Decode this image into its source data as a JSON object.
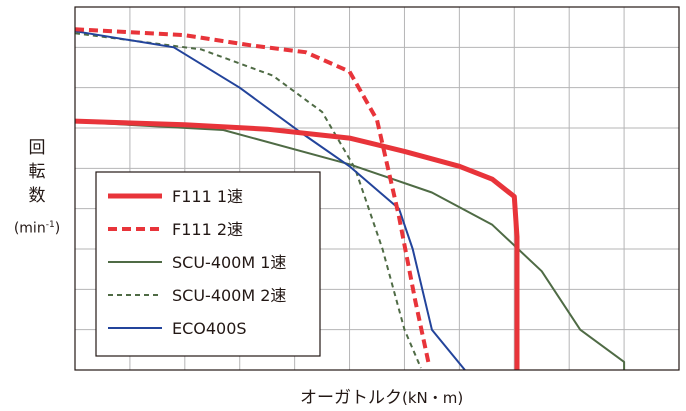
{
  "chart_data": {
    "type": "line",
    "title": "",
    "xlabel": "オーガトルク",
    "xlabel_unit": "(kN・m)",
    "ylabel_chars": [
      "回",
      "転",
      "数"
    ],
    "ylabel_unit_base": "(min",
    "ylabel_unit_sup": "-1",
    "ylabel_unit_close": ")",
    "xlim": [
      0,
      11
    ],
    "ylim": [
      0,
      9
    ],
    "x_gridlines": 10,
    "y_gridlines": 8,
    "grid": true,
    "legend_position": "bottom-left",
    "series": [
      {
        "name": "F111 1速",
        "color": "#e8343a",
        "style": "solid",
        "width": 5,
        "points": [
          [
            0,
            6.17
          ],
          [
            2,
            6.08
          ],
          [
            3.5,
            5.97
          ],
          [
            5,
            5.75
          ],
          [
            6,
            5.42
          ],
          [
            7,
            5.05
          ],
          [
            7.6,
            4.73
          ],
          [
            8,
            4.3
          ],
          [
            8.05,
            3.3
          ],
          [
            8.05,
            0
          ]
        ]
      },
      {
        "name": "F111 2速",
        "color": "#e8343a",
        "style": "dashed",
        "width": 4,
        "points": [
          [
            0,
            8.45
          ],
          [
            2,
            8.3
          ],
          [
            3.2,
            8.05
          ],
          [
            4.2,
            7.88
          ],
          [
            5,
            7.4
          ],
          [
            5.5,
            6.2
          ],
          [
            5.9,
            3.8
          ],
          [
            6.2,
            1.7
          ],
          [
            6.45,
            0.1
          ]
        ]
      },
      {
        "name": "SCU-400M 1速",
        "color": "#4f6b45",
        "style": "solid",
        "width": 2,
        "points": [
          [
            0,
            6.15
          ],
          [
            2.7,
            5.95
          ],
          [
            5,
            5.1
          ],
          [
            6.5,
            4.4
          ],
          [
            7.6,
            3.6
          ],
          [
            8.5,
            2.45
          ],
          [
            9.2,
            1.0
          ],
          [
            10,
            0.2
          ],
          [
            10,
            0
          ]
        ]
      },
      {
        "name": "SCU-400M 2速",
        "color": "#4f6b45",
        "style": "dashed",
        "width": 2,
        "points": [
          [
            0,
            8.35
          ],
          [
            2.3,
            7.95
          ],
          [
            3.6,
            7.3
          ],
          [
            4.5,
            6.4
          ],
          [
            5.1,
            5.0
          ],
          [
            5.6,
            3.0
          ],
          [
            6.0,
            1.0
          ],
          [
            6.3,
            0.05
          ]
        ]
      },
      {
        "name": "ECO400S",
        "color": "#23449b",
        "style": "solid",
        "width": 2,
        "points": [
          [
            0,
            8.4
          ],
          [
            1.8,
            8.0
          ],
          [
            3,
            7.0
          ],
          [
            4.1,
            5.9
          ],
          [
            5,
            5.05
          ],
          [
            5.9,
            4.0
          ],
          [
            6.15,
            3.0
          ],
          [
            6.5,
            1.0
          ],
          [
            7.1,
            0
          ]
        ]
      }
    ]
  }
}
